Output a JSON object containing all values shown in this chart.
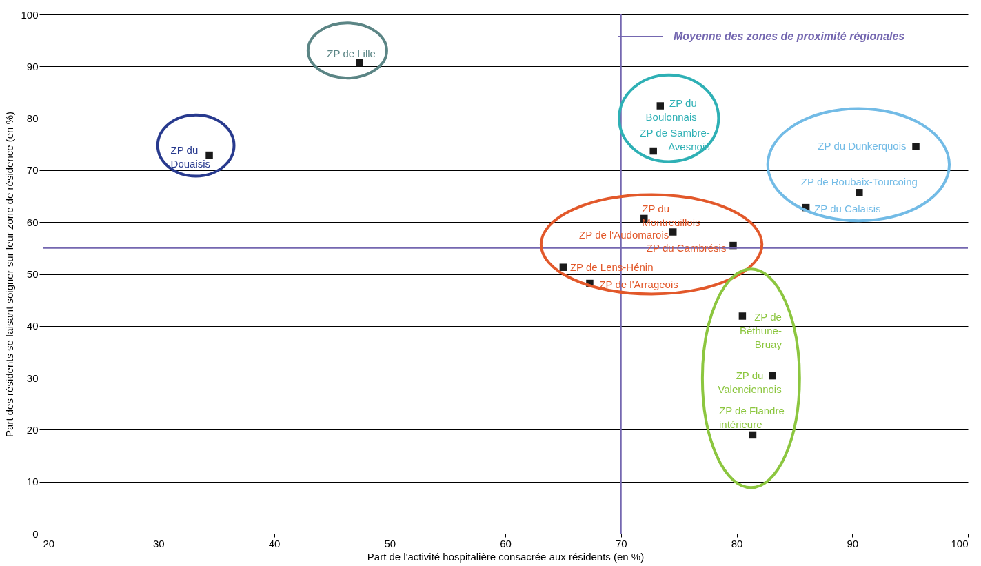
{
  "chart_data": {
    "type": "scatter",
    "xlabel": "Part de l'activité hospitalière consacrée aux résidents (en %)",
    "ylabel": "Part des résidents se faisant soigner sur leur zone de résidence (en %)",
    "xlim": [
      20,
      100
    ],
    "ylim": [
      0,
      100
    ],
    "xticks": [
      20,
      30,
      40,
      50,
      60,
      70,
      80,
      90,
      100
    ],
    "yticks": [
      0,
      10,
      20,
      30,
      40,
      50,
      60,
      70,
      80,
      90,
      100
    ],
    "grid": "y",
    "marker": "square",
    "legend": "top right",
    "ref_lines": [
      {
        "axis": "x",
        "value": 70,
        "label": "Moyenne des  zones de proximité régionales",
        "color": "#7467b0"
      },
      {
        "axis": "y",
        "value": 55,
        "label": null,
        "color": "#7467b0"
      }
    ],
    "series": [
      {
        "color": "#1a1a1a",
        "x": [
          47.4
        ],
        "values": [
          90.7
        ],
        "value_labels": [
          "ZP de Lille"
        ]
      },
      {
        "color": "#1a1a1a",
        "x": [
          34.4
        ],
        "values": [
          72.9
        ],
        "value_labels": [
          "ZP du\nDouaisis"
        ]
      },
      {
        "color": "#1a1a1a",
        "x": [
          73.4,
          72.8
        ],
        "values": [
          82.4,
          73.7
        ],
        "value_labels": [
          "ZP du\nBoulonnais",
          "ZP de Sambre-\nAvesnois"
        ]
      },
      {
        "color": "#1a1a1a",
        "x": [
          95.5,
          90.6,
          86.0
        ],
        "values": [
          74.6,
          65.7,
          62.8
        ],
        "value_labels": [
          "ZP du Dunkerquois",
          "ZP de Roubaix-Tourcoing",
          "ZP du Calaisis"
        ]
      },
      {
        "color": "#1a1a1a",
        "x": [
          72.0,
          74.5,
          79.7,
          65.0,
          67.3
        ],
        "values": [
          60.7,
          58.1,
          55.5,
          51.3,
          48.2
        ],
        "value_labels": [
          "ZP du\nMontreuillois",
          "ZP de l'Audomarois",
          "ZP du Cambrésis",
          "ZP de Lens-Hénin",
          "ZP de l'Arrageois"
        ]
      },
      {
        "color": "#1a1a1a",
        "x": [
          80.5,
          83.1,
          81.4
        ],
        "values": [
          41.9,
          30.4,
          19.0
        ],
        "value_labels": [
          "ZP de\nBéthune-\nBruay",
          "ZP du\nValenciennois",
          "ZP de Flandre\nintérieure"
        ]
      }
    ]
  }
}
